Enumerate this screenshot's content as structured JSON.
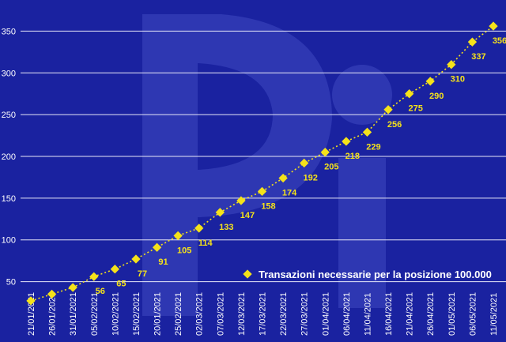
{
  "chart_data": {
    "type": "line",
    "title": "",
    "xlabel": "",
    "ylabel": "",
    "ylim": [
      25,
      360
    ],
    "yticks": [
      50,
      100,
      150,
      200,
      250,
      300,
      350
    ],
    "grid": "horizontal",
    "legend_placement": "bottom-right",
    "categories": [
      "21/01/2021",
      "26/01/2021",
      "31/01/2021",
      "05/02/2021",
      "10/02/2021",
      "15/02/2021",
      "20/01/2021",
      "25/02/2021",
      "02/03/2021",
      "07/03/2021",
      "12/03/2021",
      "17/03/2021",
      "22/03/2021",
      "27/03/2021",
      "01/04/2021",
      "06/04/2021",
      "11/04/2021",
      "16/04/2021",
      "21/04/2021",
      "26/04/2021",
      "01/05/2021",
      "06/05/2021",
      "11/05/2021"
    ],
    "series": [
      {
        "name": "Transazioni necessarie per la posizione 100.000",
        "values": [
          27,
          35,
          43,
          56,
          65,
          77,
          91,
          105,
          114,
          133,
          147,
          158,
          174,
          192,
          205,
          218,
          229,
          256,
          275,
          290,
          310,
          337,
          356
        ],
        "labels": [
          "",
          "",
          "",
          "56",
          "65",
          "77",
          "91",
          "105",
          "114",
          "133",
          "147",
          "158",
          "174",
          "192",
          "205",
          "218",
          "229",
          "256",
          "275",
          "290",
          "310",
          "337",
          "356"
        ]
      }
    ],
    "colors": {
      "background": "#1a22a0",
      "plot_background": "#1e27a6",
      "grid": "#e8e8f8",
      "axis_text": "#ffffff",
      "series": "#f5e21a",
      "data_label": "#f5e21a",
      "watermark": "#3b44b8"
    }
  }
}
